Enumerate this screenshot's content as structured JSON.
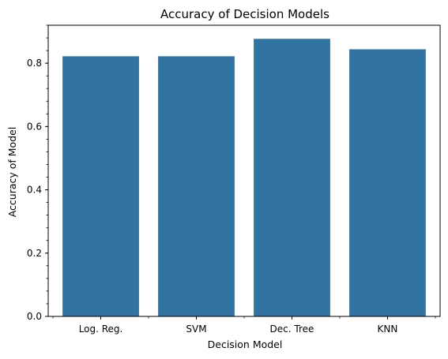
{
  "chart_data": {
    "type": "bar",
    "title": "Accuracy of Decision Models",
    "xlabel": "Decision Model",
    "ylabel": "Accuracy of Model",
    "categories": [
      "Log. Reg.",
      "SVM",
      "Dec. Tree",
      "KNN"
    ],
    "values": [
      0.822,
      0.822,
      0.877,
      0.844
    ],
    "ylim": [
      0,
      0.92
    ],
    "yticks": [
      0.0,
      0.2,
      0.4,
      0.6,
      0.8
    ],
    "ytick_labels": [
      "0.0",
      "0.2",
      "0.4",
      "0.6",
      "0.8"
    ],
    "minor_y_step": 0.04,
    "bar_color": "#3274a1",
    "grid": false,
    "legend": false
  }
}
